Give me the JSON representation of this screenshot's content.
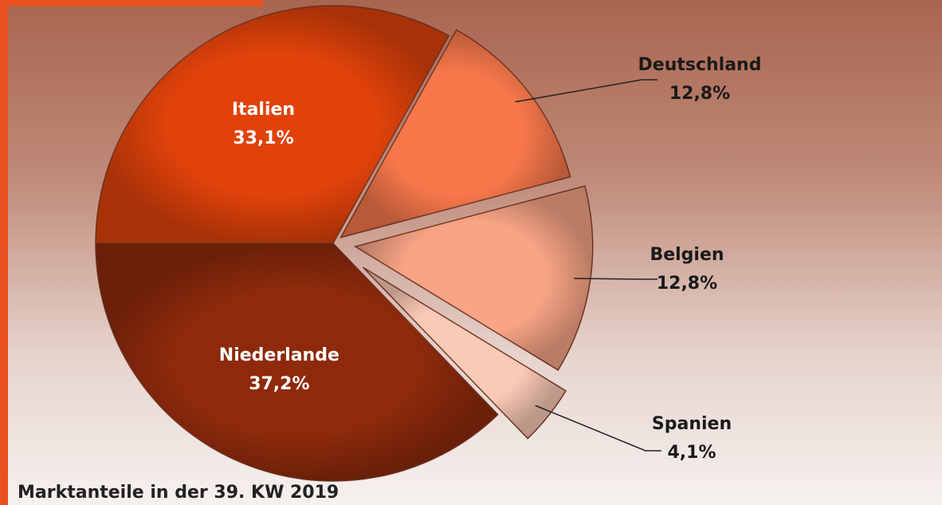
{
  "chart_data": {
    "type": "pie",
    "title": "Marktanteile in der 39. KW 2019",
    "categories": [
      "Italien",
      "Deutschland",
      "Belgien",
      "Spanien",
      "Niederlande"
    ],
    "values": [
      33.1,
      12.8,
      12.8,
      4.1,
      37.2
    ],
    "value_labels": [
      "33,1%",
      "12,8%",
      "12,8%",
      "4,1%",
      "37,2%"
    ],
    "colors": [
      "#e0420a",
      "#f5774a",
      "#f8a585",
      "#fbcab6",
      "#8e2a0b"
    ]
  }
}
